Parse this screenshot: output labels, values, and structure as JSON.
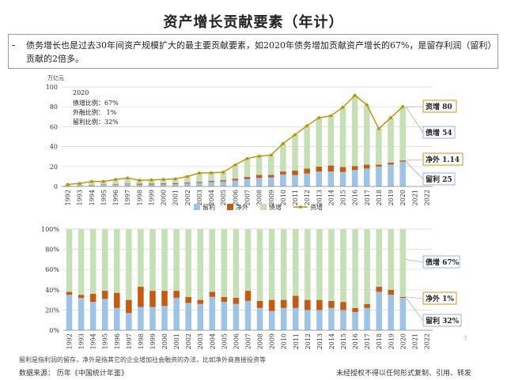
{
  "title": "资产增长贡献要素（年计）",
  "summary": {
    "bullet": "-",
    "text": "债务增长也是过去30年间资产规模扩大的最主要贡献要素，如2020年债务增加贡献资产增长的67%，是留存利润（留利）贡献的2倍多。"
  },
  "colors": {
    "retained": "#9DC3E6",
    "net_foreign": "#C55A11",
    "debt": "#C5E0B4",
    "asset_line": "#BF9000",
    "box_border": "#8FAADC"
  },
  "chart_data": [
    {
      "type": "bar",
      "stacked": true,
      "unit_label": "万亿元",
      "categories": [
        "1992",
        "1993",
        "1994",
        "1995",
        "1996",
        "1997",
        "1998",
        "1999",
        "2000",
        "2001",
        "2002",
        "2003",
        "2004",
        "2005",
        "2006",
        "2007",
        "2008",
        "2009",
        "2010",
        "2011",
        "2012",
        "2013",
        "2014",
        "2015",
        "2016",
        "2017",
        "2018",
        "2019",
        "2020",
        "2021",
        "2022"
      ],
      "ylim": [
        0,
        100
      ],
      "yticks": [
        "0",
        "20",
        "40",
        "60",
        "80",
        "100"
      ],
      "series": [
        {
          "name": "留利",
          "kind": "bar",
          "values": [
            0.7,
            1.2,
            1.2,
            1.6,
            2,
            2.3,
            1.8,
            2,
            2.1,
            2.4,
            3,
            3.5,
            4.5,
            5,
            6,
            7.5,
            8.5,
            9,
            12,
            11.5,
            13,
            15,
            15,
            14.5,
            16.5,
            18,
            20,
            22,
            25,
            null,
            null
          ]
        },
        {
          "name": "净外",
          "kind": "bar",
          "values": [
            0.1,
            0.1,
            0.3,
            0.4,
            0.5,
            0.5,
            1,
            1,
            1,
            1,
            0.9,
            1,
            1.2,
            1.3,
            1.8,
            2,
            3,
            2.5,
            3,
            4.5,
            5,
            5,
            6,
            5,
            4,
            4,
            2,
            2,
            1.14,
            null,
            null
          ]
        },
        {
          "name": "债增",
          "kind": "bar",
          "values": [
            1.2,
            1.8,
            3.5,
            3,
            4.5,
            5.7,
            3.4,
            3.5,
            4,
            4.2,
            6,
            9,
            8,
            8,
            13.8,
            18.5,
            19,
            20,
            28,
            36,
            43,
            49,
            50,
            60,
            71,
            60,
            36,
            45,
            54,
            null,
            null
          ]
        },
        {
          "name": "资增",
          "kind": "line",
          "values": [
            2,
            3,
            5,
            5,
            7,
            8.5,
            6.2,
            6.5,
            7,
            7.6,
            10,
            13.5,
            13.7,
            14.3,
            21.6,
            28,
            30.5,
            31.5,
            43,
            52,
            61,
            69,
            71,
            79.5,
            91.5,
            82,
            58,
            69,
            80.14,
            null,
            null
          ]
        }
      ],
      "annotation": {
        "year": "2020",
        "lines": [
          "债增比例：67%",
          "外融比例：   1%",
          "留利比例：32%"
        ]
      },
      "callouts": [
        {
          "series": "资增",
          "text": "资增 80"
        },
        {
          "series": "债增",
          "text": "债增 54"
        },
        {
          "series": "净外",
          "text": "净外 1.14"
        },
        {
          "series": "留利",
          "text": "留利 25"
        }
      ],
      "legend": [
        "留利",
        "净外",
        "债增",
        "资增"
      ],
      "legend_position": "bottom"
    },
    {
      "type": "bar",
      "stacked": true,
      "percent": true,
      "categories": [
        "1992",
        "1993",
        "1994",
        "1995",
        "1996",
        "1997",
        "1998",
        "1999",
        "2000",
        "2001",
        "2002",
        "2003",
        "2004",
        "2005",
        "2006",
        "2007",
        "2008",
        "2009",
        "2010",
        "2011",
        "2012",
        "2013",
        "2014",
        "2015",
        "2016",
        "2017",
        "2018",
        "2019",
        "2020",
        "2021",
        "2022"
      ],
      "ylim": [
        0,
        100
      ],
      "yticks": [
        "0%",
        "20%",
        "40%",
        "60%",
        "80%",
        "100%"
      ],
      "series": [
        {
          "name": "留利",
          "values": [
            35,
            32,
            28,
            31,
            22,
            17,
            23,
            23,
            24,
            32,
            27,
            26,
            33,
            28,
            26,
            29,
            22,
            19,
            22,
            22,
            20,
            20,
            22,
            20,
            18,
            22,
            38,
            35,
            32,
            null,
            null
          ]
        },
        {
          "name": "净外",
          "values": [
            3,
            3,
            8,
            8,
            15,
            13,
            20,
            16,
            15,
            7,
            6,
            4,
            5,
            5,
            6,
            10,
            7,
            11,
            8,
            12,
            10,
            10,
            7,
            8,
            4,
            4,
            5,
            5,
            1,
            null,
            null
          ]
        },
        {
          "name": "债增",
          "values": [
            62,
            65,
            64,
            61,
            63,
            70,
            57,
            61,
            61,
            61,
            67,
            70,
            62,
            67,
            68,
            61,
            71,
            70,
            70,
            66,
            70,
            70,
            71,
            72,
            78,
            74,
            57,
            60,
            67,
            null,
            null
          ]
        }
      ],
      "callouts": [
        {
          "series": "债增",
          "text": "债增 67%"
        },
        {
          "series": "净外",
          "text": "净外 1%"
        },
        {
          "series": "留利",
          "text": "留利 32%"
        }
      ]
    }
  ],
  "footnote": "留利是指利润的留存，净外是指其它的企业增加社会融资的办法，比如净外商直接投资等",
  "source": "数据来源：   历年《中国统计年鉴》",
  "copyright": "未经授权不得以任何形式复制、引用、转发",
  "page_number": "7"
}
